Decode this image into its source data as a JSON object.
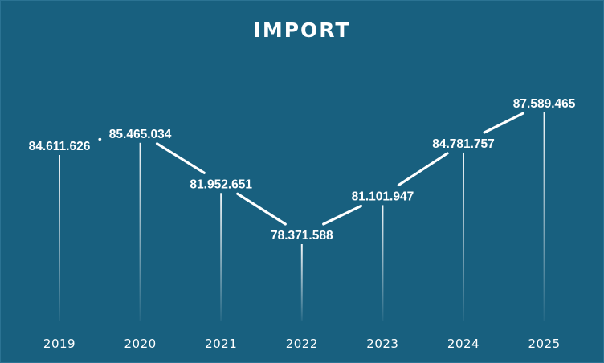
{
  "chart_data": {
    "type": "line",
    "title": "IMPORT",
    "categories": [
      "2019",
      "2020",
      "2021",
      "2022",
      "2023",
      "2024",
      "2025"
    ],
    "values": [
      84611626,
      85465034,
      81952651,
      78371588,
      81101947,
      84781757,
      87589465
    ],
    "data_labels": [
      "84.611.626",
      "85.465.034",
      "81.952.651",
      "78.371.588",
      "81.101.947",
      "84.781.757",
      "87.589.465"
    ],
    "xlabel": "",
    "ylabel": "",
    "grid": false,
    "legend": "none"
  },
  "colors": {
    "background": "#18607f",
    "border": "#2b7393",
    "line": "#ffffff",
    "text": "#ffffff"
  }
}
